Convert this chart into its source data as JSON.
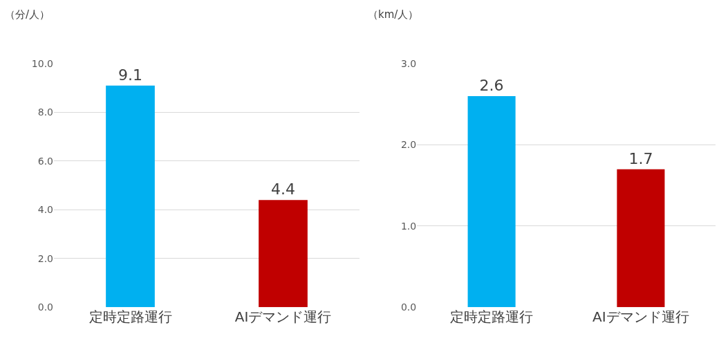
{
  "chart_data": [
    {
      "type": "bar",
      "ylabel": "（分/人）",
      "categories": [
        "定時定路運行",
        "AIデマンド運行"
      ],
      "values": [
        9.1,
        4.4
      ],
      "colors": [
        "#00b0f0",
        "#c00000"
      ],
      "ylim": [
        0,
        10
      ],
      "yticks": [
        {
          "value": 0,
          "label": "0.0"
        },
        {
          "value": 2,
          "label": "2.0"
        },
        {
          "value": 4,
          "label": "4.0"
        },
        {
          "value": 6,
          "label": "6.0"
        },
        {
          "value": 8,
          "label": "8.0"
        },
        {
          "value": 10,
          "label": "10.0"
        }
      ],
      "grid": "y",
      "data_labels": true
    },
    {
      "type": "bar",
      "ylabel": "（km/人）",
      "categories": [
        "定時定路運行",
        "AIデマンド運行"
      ],
      "values": [
        2.6,
        1.7
      ],
      "colors": [
        "#00b0f0",
        "#c00000"
      ],
      "ylim": [
        0,
        3
      ],
      "yticks": [
        {
          "value": 0,
          "label": "0.0"
        },
        {
          "value": 1,
          "label": "1.0"
        },
        {
          "value": 2,
          "label": "2.0"
        },
        {
          "value": 3,
          "label": "3.0"
        }
      ],
      "grid": "y",
      "data_labels": true
    }
  ]
}
